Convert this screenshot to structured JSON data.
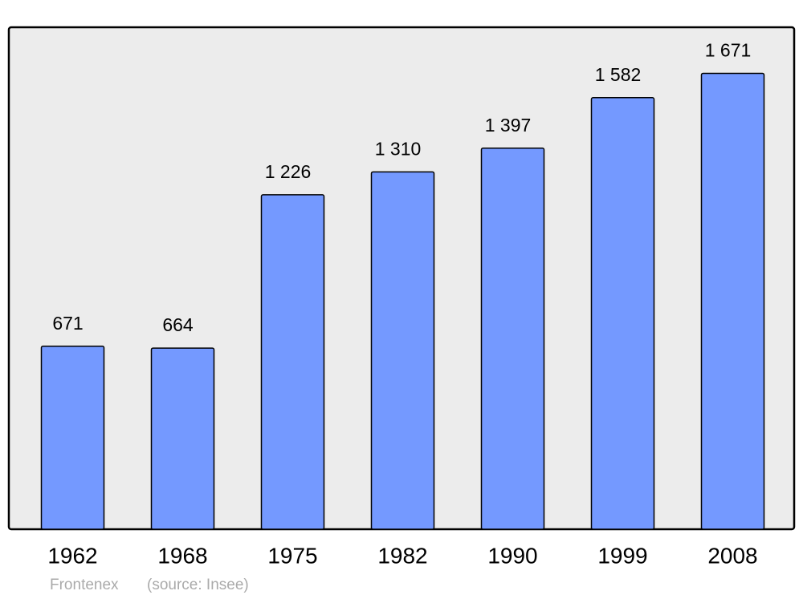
{
  "chart_data": {
    "type": "bar",
    "title": "Frontenex",
    "source": "(source: Insee)",
    "categories": [
      "1962",
      "1968",
      "1975",
      "1982",
      "1990",
      "1999",
      "2008"
    ],
    "values": [
      671,
      664,
      1226,
      1310,
      1397,
      1582,
      1671
    ],
    "value_labels": [
      "671",
      "664",
      "1 226",
      "1 310",
      "1 397",
      "1 582",
      "1 671"
    ],
    "color": "#7499ff",
    "ylim": [
      0,
      1840
    ]
  }
}
